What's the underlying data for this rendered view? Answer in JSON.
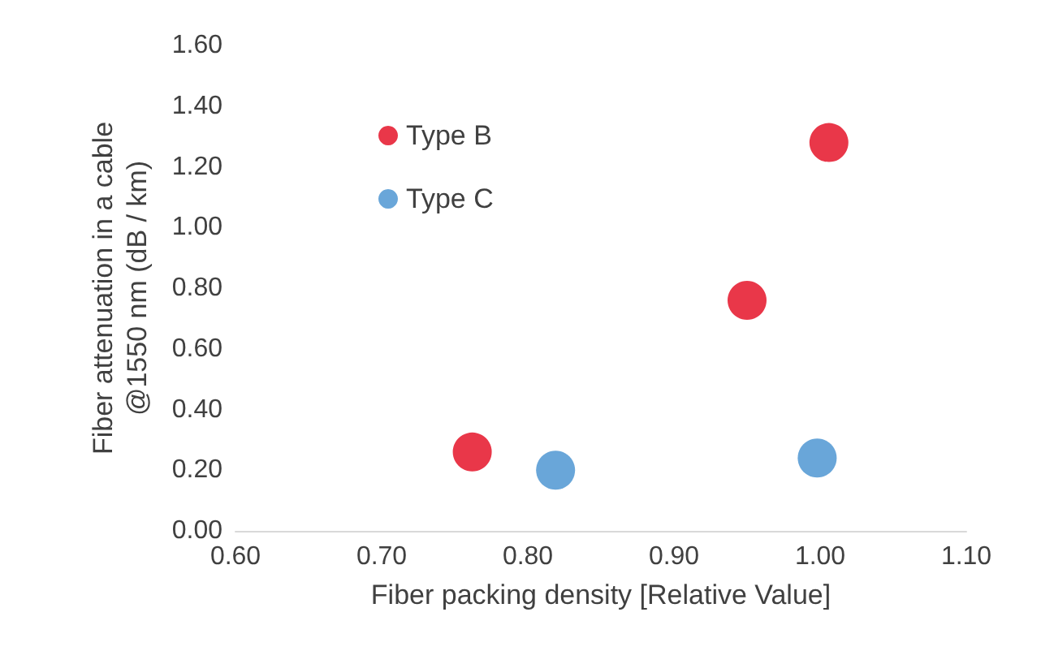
{
  "chart_data": {
    "type": "scatter",
    "xlabel": "Fiber packing density [Relative Value]",
    "ylabel": "Fiber attenuation in a cable\n@1550 nm (dB / km)",
    "series": [
      {
        "name": "Type B",
        "color": "#e3051b",
        "x": [
          0.762,
          0.95,
          1.006
        ],
        "values": [
          0.26,
          0.76,
          1.28
        ]
      },
      {
        "name": "Type C",
        "color": "#4390d0",
        "x": [
          0.819,
          0.998
        ],
        "values": [
          0.2,
          0.24
        ]
      }
    ],
    "xlim": [
      0.6,
      1.1
    ],
    "xticks": [
      {
        "value": 0.6,
        "label": "0.60"
      },
      {
        "value": 0.7,
        "label": "0.70"
      },
      {
        "value": 0.8,
        "label": "0.80"
      },
      {
        "value": 0.9,
        "label": "0.90"
      },
      {
        "value": 1.0,
        "label": "1.00"
      },
      {
        "value": 1.1,
        "label": "1.10"
      }
    ],
    "ylim": [
      0,
      1.6
    ],
    "yticks": [
      {
        "value": 0,
        "label": "0.00"
      },
      {
        "value": 0.2,
        "label": "0.20"
      },
      {
        "value": 0.4,
        "label": "0.40"
      },
      {
        "value": 0.6,
        "label": "0.60"
      },
      {
        "value": 0.8,
        "label": "0.80"
      },
      {
        "value": 1.0,
        "label": "1.00"
      },
      {
        "value": 1.2,
        "label": "1.20"
      },
      {
        "value": 1.4,
        "label": "1.40"
      },
      {
        "value": 1.6,
        "label": "1.60"
      }
    ],
    "grid": false,
    "legend": "top left",
    "marker": "circle"
  }
}
